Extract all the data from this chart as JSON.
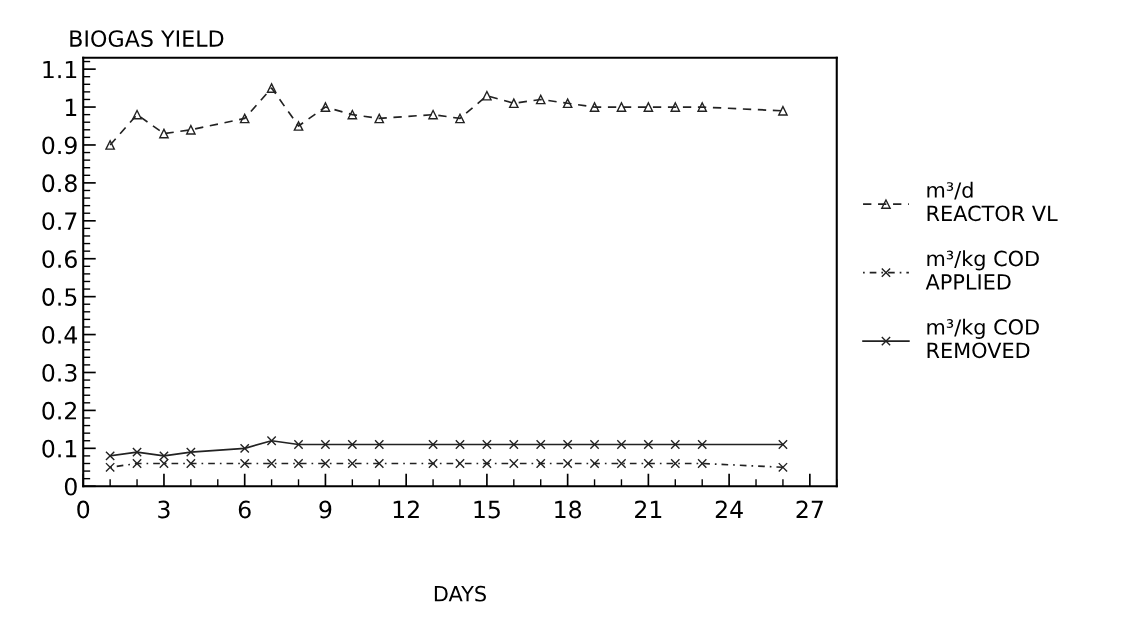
{
  "chart_data": {
    "type": "line",
    "title": "BIOGAS YIELD",
    "xlabel": "DAYS",
    "x": [
      1,
      2,
      3,
      4,
      6,
      7,
      8,
      9,
      10,
      11,
      13,
      14,
      15,
      16,
      17,
      18,
      19,
      20,
      21,
      22,
      23,
      26
    ],
    "series": [
      {
        "name": "m³/d\nREACTOR VL",
        "color": "#222222",
        "marker": "triangle",
        "line_style": "dashed",
        "values": [
          0.9,
          0.98,
          0.93,
          0.94,
          0.97,
          1.05,
          0.95,
          1.0,
          0.98,
          0.97,
          0.98,
          0.97,
          1.03,
          1.01,
          1.02,
          1.01,
          1.0,
          1.0,
          1.0,
          1.0,
          1.0,
          0.99
        ]
      },
      {
        "name": "m³/kg COD\nAPPLIED",
        "color": "#222222",
        "marker": "cross",
        "line_style": "dotted",
        "values": [
          0.05,
          0.06,
          0.06,
          0.06,
          0.06,
          0.06,
          0.06,
          0.06,
          0.06,
          0.06,
          0.06,
          0.06,
          0.06,
          0.06,
          0.06,
          0.06,
          0.06,
          0.06,
          0.06,
          0.06,
          0.06,
          0.05
        ]
      },
      {
        "name": "m³/kg COD\nREMOVED",
        "color": "#222222",
        "marker": "cross",
        "line_style": "solid",
        "values": [
          0.08,
          0.09,
          0.08,
          0.09,
          0.1,
          0.12,
          0.11,
          0.11,
          0.11,
          0.11,
          0.11,
          0.11,
          0.11,
          0.11,
          0.11,
          0.11,
          0.11,
          0.11,
          0.11,
          0.11,
          0.11,
          0.11
        ]
      }
    ],
    "xlim": [
      0,
      28
    ],
    "xticks": [
      0,
      3,
      6,
      9,
      12,
      15,
      18,
      21,
      24,
      27
    ],
    "ylim": [
      0,
      1.13
    ],
    "yticks": [
      0,
      0.1,
      0.2,
      0.3,
      0.4,
      0.5,
      0.6,
      0.7,
      0.8,
      0.9,
      1,
      1.1
    ],
    "grid": false,
    "legend": "right"
  }
}
